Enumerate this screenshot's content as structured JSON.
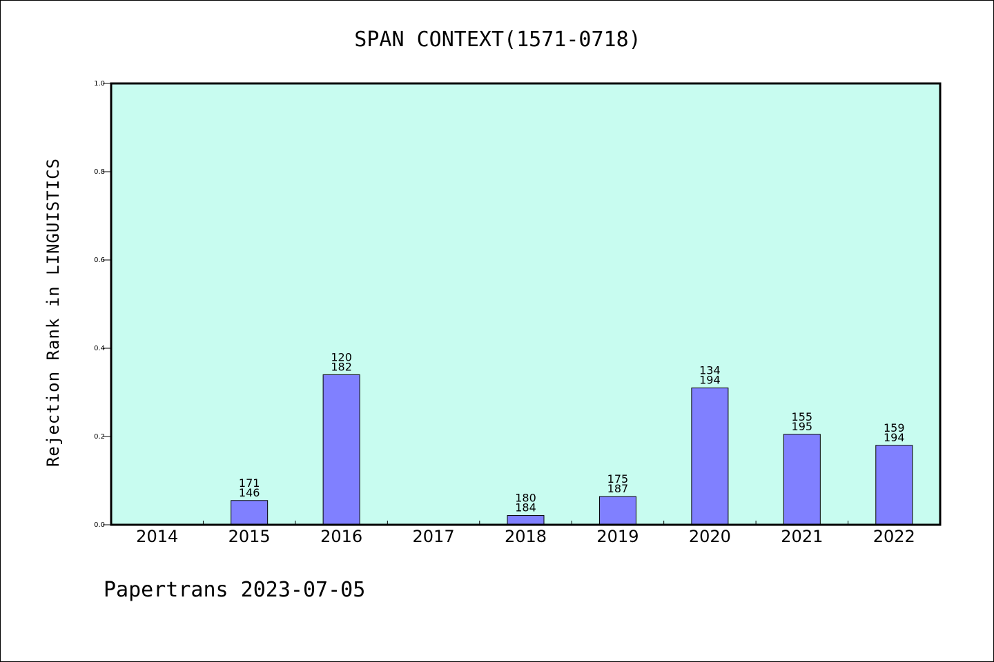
{
  "colors": {
    "plot_background": "#c8fcf0",
    "bar_fill": "#8080ff",
    "bar_stroke": "#000000",
    "axis": "#000000"
  },
  "chart_data": {
    "type": "bar",
    "title": "SPAN CONTEXT(1571-0718)",
    "xlabel": "",
    "ylabel": "Rejection Rank in LINGUISTICS",
    "ylim": [
      0,
      1.0
    ],
    "yticks": [
      "0.0",
      "0.2",
      "0.4",
      "0.6",
      "0.8",
      "1.0"
    ],
    "grid": false,
    "categories": [
      "2014",
      "2015",
      "2016",
      "2017",
      "2018",
      "2019",
      "2020",
      "2021",
      "2022"
    ],
    "values": [
      0,
      0.055,
      0.34,
      0,
      0.021,
      0.064,
      0.31,
      0.205,
      0.18
    ],
    "labels": [
      null,
      [
        "171",
        "146"
      ],
      [
        "120",
        "182"
      ],
      null,
      [
        "180",
        "184"
      ],
      [
        "175",
        "187"
      ],
      [
        "134",
        "194"
      ],
      [
        "155",
        "195"
      ],
      [
        "159",
        "194"
      ]
    ]
  },
  "footer": "Papertrans 2023-07-05"
}
